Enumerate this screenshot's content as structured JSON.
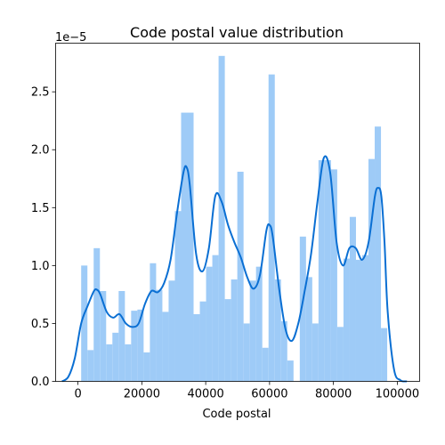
{
  "chart_data": {
    "type": "bar",
    "title": "Code postal value distribution",
    "xlabel": "Code postal",
    "ylabel": "",
    "offset_text": "1e−5",
    "y_multiplier": 1e-05,
    "xlim": [
      -7000,
      107000
    ],
    "ylim": [
      0,
      2.92
    ],
    "xticks": [
      0,
      20000,
      40000,
      60000,
      80000,
      100000
    ],
    "xtick_labels": [
      "0",
      "20000",
      "40000",
      "60000",
      "80000",
      "100000"
    ],
    "yticks": [
      0.0,
      0.5,
      1.0,
      1.5,
      2.0,
      2.5
    ],
    "ytick_labels": [
      "0.0",
      "0.5",
      "1.0",
      "1.5",
      "2.0",
      "2.5"
    ],
    "histogram": {
      "bin_start": 1000,
      "bin_width": 1956,
      "values": [
        1.0,
        0.27,
        1.15,
        0.78,
        0.32,
        0.42,
        0.78,
        0.32,
        0.61,
        0.62,
        0.25,
        1.02,
        0.79,
        0.6,
        0.87,
        1.47,
        2.32,
        2.32,
        0.58,
        0.69,
        0.99,
        1.09,
        2.81,
        0.71,
        0.88,
        1.81,
        0.5,
        0.87,
        0.99,
        0.29,
        2.65,
        0.88,
        0.52,
        0.18,
        0.0,
        1.25,
        0.9,
        0.5,
        1.91,
        1.91,
        1.83,
        0.47,
        1.06,
        1.42,
        1.05,
        1.09,
        1.92,
        2.2,
        0.46
      ]
    },
    "kde": {
      "x": [
        -5000,
        -3000,
        -1000,
        1000,
        3000,
        5000,
        6000,
        7000,
        9000,
        11000,
        13000,
        15000,
        17000,
        19000,
        21000,
        23000,
        25000,
        27000,
        29000,
        31000,
        33000,
        34000,
        35000,
        37000,
        39000,
        41000,
        43000,
        45000,
        47000,
        49000,
        51000,
        53000,
        55000,
        57000,
        59000,
        60000,
        61000,
        63000,
        65000,
        67000,
        69000,
        71000,
        73000,
        75000,
        77000,
        79000,
        81000,
        83000,
        85000,
        87000,
        89000,
        91000,
        93000,
        94000,
        95000,
        96000,
        97000,
        99000,
        101000,
        103000
      ],
      "y": [
        0.0,
        0.04,
        0.2,
        0.5,
        0.65,
        0.78,
        0.79,
        0.75,
        0.6,
        0.55,
        0.58,
        0.5,
        0.47,
        0.5,
        0.67,
        0.78,
        0.77,
        0.85,
        1.05,
        1.45,
        1.8,
        1.85,
        1.7,
        1.1,
        0.95,
        1.15,
        1.6,
        1.55,
        1.35,
        1.2,
        1.07,
        0.9,
        0.8,
        0.92,
        1.3,
        1.35,
        1.25,
        0.8,
        0.45,
        0.35,
        0.5,
        0.78,
        1.1,
        1.55,
        1.93,
        1.8,
        1.2,
        1.0,
        1.15,
        1.15,
        1.05,
        1.2,
        1.6,
        1.67,
        1.6,
        1.2,
        0.6,
        0.1,
        0.01,
        0.0
      ]
    },
    "colors": {
      "bars": "#9ecbf7",
      "kde_line": "#0a6fd3",
      "axes": "#000000"
    },
    "grid": false,
    "legend": "none"
  }
}
